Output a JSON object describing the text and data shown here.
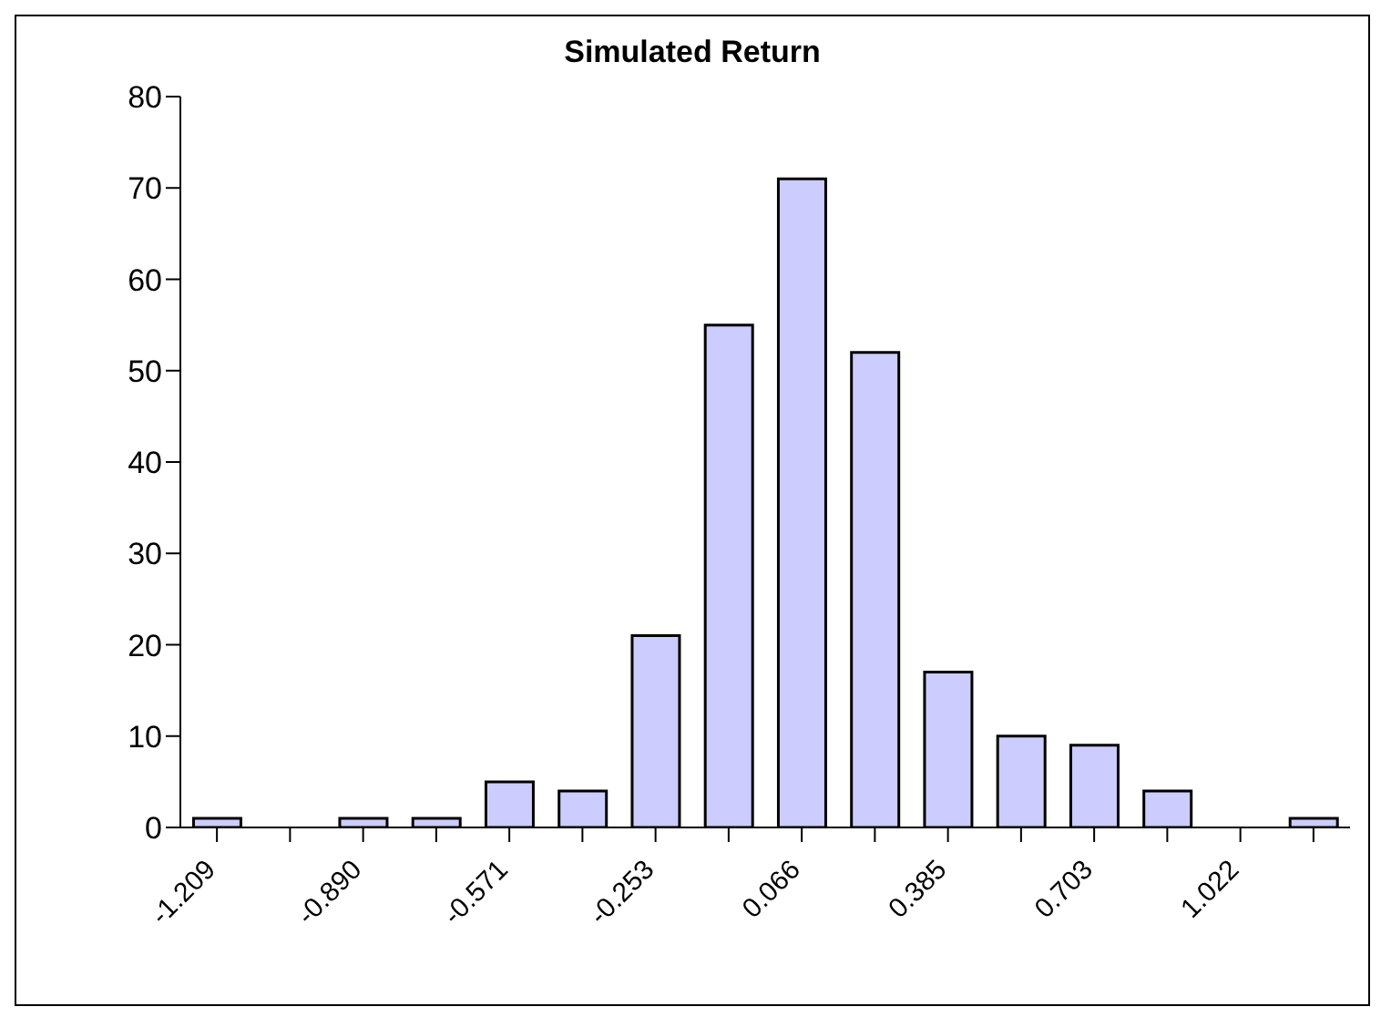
{
  "chart_data": {
    "type": "bar",
    "title": "Simulated Return",
    "categories": [
      "-1.209",
      null,
      "-0.890",
      null,
      "-0.571",
      null,
      "-0.253",
      null,
      "0.066",
      null,
      "0.385",
      null,
      "0.703",
      null,
      "1.022",
      null
    ],
    "values": [
      1,
      0,
      1,
      1,
      5,
      4,
      21,
      55,
      71,
      52,
      17,
      10,
      9,
      4,
      0,
      1
    ],
    "color": "#ccccff",
    "ylim": [
      0,
      80
    ],
    "yticks": [
      0,
      10,
      20,
      30,
      40,
      50,
      60,
      70,
      80
    ],
    "grid": false,
    "legend": false
  }
}
